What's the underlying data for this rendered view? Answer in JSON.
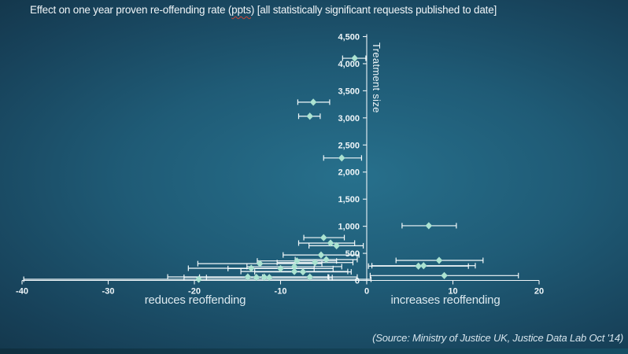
{
  "slide": {
    "title": {
      "prefix": "Effect on one year proven re-offending rate (",
      "spellchecked_word": "ppts",
      "suffix": ") [all statistically significant requests published to date]"
    },
    "source": "(Source: Ministry of Justice UK, Justice Data Lab Oct '14)"
  },
  "colors": {
    "background_center": "#27708c",
    "background_edge": "#112e40",
    "axis": "#edf4f7",
    "marker": "#abe3d1",
    "error_bar": "#f4fafb",
    "title_text": "#f0f5f8",
    "spellcheck_underline": "#cc4433"
  },
  "chart_data": {
    "type": "scatter",
    "title": "Effect on one year proven re-offending rate (ppts) [all statistically significant requests published to date]",
    "xlabel_negative": "reduces reoffending",
    "xlabel_positive": "increases reoffending",
    "ylabel": "Treatment size",
    "xlim": [
      -40,
      20
    ],
    "ylim": [
      0,
      4500
    ],
    "x_ticks": [
      -40,
      -30,
      -20,
      -10,
      0,
      10,
      20
    ],
    "y_ticks": [
      0,
      500,
      1000,
      1500,
      2000,
      2500,
      3000,
      3500,
      4000,
      4500
    ],
    "grid": false,
    "legend": false,
    "marker_shape": "diamond",
    "error_bars": "horizontal 95% confidence intervals",
    "points": [
      {
        "effect": -1.4,
        "treatment_size": 4100,
        "ci": [
          -2.8,
          -0.1
        ]
      },
      {
        "effect": -6.2,
        "treatment_size": 3290,
        "ci": [
          -8.0,
          -4.3
        ]
      },
      {
        "effect": -6.6,
        "treatment_size": 3030,
        "ci": [
          -7.9,
          -5.4
        ]
      },
      {
        "effect": -2.9,
        "treatment_size": 2260,
        "ci": [
          -5.0,
          -0.6
        ]
      },
      {
        "effect": 7.2,
        "treatment_size": 1010,
        "ci": [
          4.1,
          10.4
        ]
      },
      {
        "effect": -5.0,
        "treatment_size": 790,
        "ci": [
          -7.3,
          -2.6
        ]
      },
      {
        "effect": -4.2,
        "treatment_size": 690,
        "ci": [
          -7.9,
          -1.4
        ]
      },
      {
        "effect": -3.5,
        "treatment_size": 640,
        "ci": [
          -6.7,
          -0.4
        ]
      },
      {
        "effect": -5.3,
        "treatment_size": 470,
        "ci": [
          -9.7,
          -0.9
        ]
      },
      {
        "effect": -4.7,
        "treatment_size": 385,
        "ci": [
          -8.3,
          -1.1
        ]
      },
      {
        "effect": 8.4,
        "treatment_size": 370,
        "ci": [
          3.4,
          13.5
        ]
      },
      {
        "effect": -8.1,
        "treatment_size": 360,
        "ci": [
          -12.7,
          -3.5
        ]
      },
      {
        "effect": -6.0,
        "treatment_size": 330,
        "ci": [
          -10.4,
          -1.6
        ]
      },
      {
        "effect": -12.4,
        "treatment_size": 310,
        "ci": [
          -19.6,
          -5.2
        ]
      },
      {
        "effect": 6.0,
        "treatment_size": 265,
        "ci": [
          0.2,
          11.8
        ]
      },
      {
        "effect": 6.6,
        "treatment_size": 272,
        "ci": [
          0.6,
          12.6
        ]
      },
      {
        "effect": -8.4,
        "treatment_size": 255,
        "ci": [
          -13.9,
          -2.9
        ]
      },
      {
        "effect": -13.4,
        "treatment_size": 225,
        "ci": [
          -20.7,
          -6.1
        ]
      },
      {
        "effect": -10.0,
        "treatment_size": 220,
        "ci": [
          -16.1,
          -3.9
        ]
      },
      {
        "effect": -8.4,
        "treatment_size": 165,
        "ci": [
          -14.6,
          -2.2
        ]
      },
      {
        "effect": -7.4,
        "treatment_size": 158,
        "ci": [
          -13.0,
          -1.8
        ]
      },
      {
        "effect": 9.0,
        "treatment_size": 90,
        "ci": [
          0.4,
          17.6
        ]
      },
      {
        "effect": -13.8,
        "treatment_size": 65,
        "ci": [
          -23.1,
          -4.5
        ]
      },
      {
        "effect": -12.8,
        "treatment_size": 58,
        "ci": [
          -21.2,
          -4.4
        ]
      },
      {
        "effect": -11.9,
        "treatment_size": 62,
        "ci": [
          -19.4,
          -4.4
        ]
      },
      {
        "effect": -11.3,
        "treatment_size": 55,
        "ci": [
          -18.6,
          -4.0
        ]
      },
      {
        "effect": -6.6,
        "treatment_size": 63,
        "ci": [
          -12.1,
          -1.1
        ]
      },
      {
        "effect": -19.5,
        "treatment_size": 22,
        "ci": [
          -39.8,
          0.5
        ]
      }
    ]
  }
}
